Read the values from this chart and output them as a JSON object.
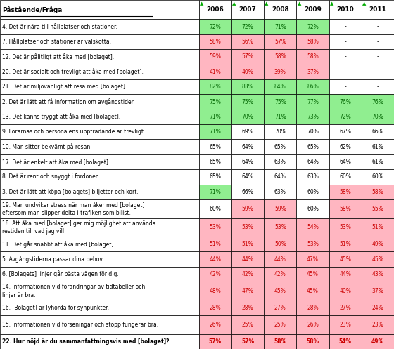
{
  "title": "Påstående/Fråga",
  "columns": [
    "2006",
    "2007",
    "2008",
    "2009",
    "2010",
    "2011"
  ],
  "rows": [
    {
      "label": "4. Det är nära till hållplatser och stationer.",
      "values": [
        "72%",
        "72%",
        "71%",
        "72%",
        "-",
        "-"
      ],
      "bg": [
        "green",
        "green",
        "green",
        "green",
        "none",
        "none"
      ],
      "bold": false,
      "two_lines": false
    },
    {
      "label": "7. Hållplatser och stationer är välskötta.",
      "values": [
        "58%",
        "56%",
        "57%",
        "58%",
        "-",
        "-"
      ],
      "bg": [
        "pink",
        "pink",
        "pink",
        "pink",
        "none",
        "none"
      ],
      "bold": false,
      "two_lines": false
    },
    {
      "label": "12. Det är pålitligt att åka med [bolaget].",
      "values": [
        "59%",
        "57%",
        "58%",
        "58%",
        "-",
        "-"
      ],
      "bg": [
        "pink",
        "pink",
        "pink",
        "pink",
        "none",
        "none"
      ],
      "bold": false,
      "two_lines": false
    },
    {
      "label": "20. Det är socialt och trevligt att åka med [bolaget].",
      "values": [
        "41%",
        "40%",
        "39%",
        "37%",
        "-",
        "-"
      ],
      "bg": [
        "pink",
        "pink",
        "pink",
        "pink",
        "none",
        "none"
      ],
      "bold": false,
      "two_lines": false
    },
    {
      "label": "21. Det är miljövänligt att resa med [bolaget].",
      "values": [
        "82%",
        "83%",
        "84%",
        "86%",
        "-",
        "-"
      ],
      "bg": [
        "green",
        "green",
        "green",
        "green",
        "none",
        "none"
      ],
      "bold": false,
      "two_lines": false
    },
    {
      "label": "2. Det är lätt att få information om avgångstider.",
      "values": [
        "75%",
        "75%",
        "75%",
        "77%",
        "76%",
        "76%"
      ],
      "bg": [
        "green",
        "green",
        "green",
        "green",
        "green",
        "green"
      ],
      "bold": false,
      "two_lines": false
    },
    {
      "label": "13. Det känns tryggt att åka med [bolaget].",
      "values": [
        "71%",
        "70%",
        "71%",
        "73%",
        "72%",
        "70%"
      ],
      "bg": [
        "green",
        "green",
        "green",
        "green",
        "green",
        "green"
      ],
      "bold": false,
      "two_lines": false
    },
    {
      "label": "9. Förarnas och personalens uppträdande är trevligt.",
      "values": [
        "71%",
        "69%",
        "70%",
        "70%",
        "67%",
        "66%"
      ],
      "bg": [
        "green",
        "none",
        "none",
        "none",
        "none",
        "none"
      ],
      "bold": false,
      "two_lines": false
    },
    {
      "label": "10. Man sitter bekvämt på resan.",
      "values": [
        "65%",
        "64%",
        "65%",
        "65%",
        "62%",
        "61%"
      ],
      "bg": [
        "none",
        "none",
        "none",
        "none",
        "none",
        "none"
      ],
      "bold": false,
      "two_lines": false
    },
    {
      "label": "17. Det är enkelt att åka med [bolaget].",
      "values": [
        "65%",
        "64%",
        "63%",
        "64%",
        "64%",
        "61%"
      ],
      "bg": [
        "none",
        "none",
        "none",
        "none",
        "none",
        "none"
      ],
      "bold": false,
      "two_lines": false
    },
    {
      "label": "8. Det är rent och snyggt i fordonen.",
      "values": [
        "65%",
        "64%",
        "64%",
        "63%",
        "60%",
        "60%"
      ],
      "bg": [
        "none",
        "none",
        "none",
        "none",
        "none",
        "none"
      ],
      "bold": false,
      "two_lines": false
    },
    {
      "label": "3. Det är lätt att köpa [bolagets] biljetter och kort.",
      "values": [
        "71%",
        "66%",
        "63%",
        "60%",
        "58%",
        "58%"
      ],
      "bg": [
        "green",
        "none",
        "none",
        "none",
        "pink",
        "pink"
      ],
      "bold": false,
      "two_lines": false
    },
    {
      "label": "19. Man undviker stress när man åker med [bolaget]\neftersom man slipper delta i trafiken som bilist.",
      "values": [
        "60%",
        "59%",
        "59%",
        "60%",
        "58%",
        "55%"
      ],
      "bg": [
        "none",
        "pink",
        "pink",
        "none",
        "pink",
        "pink"
      ],
      "bold": false,
      "two_lines": true
    },
    {
      "label": "18. Att åka med [bolaget] ger mig möjlighet att använda\nrestiden till vad jag vill.",
      "values": [
        "53%",
        "53%",
        "53%",
        "54%",
        "53%",
        "51%"
      ],
      "bg": [
        "pink",
        "pink",
        "pink",
        "pink",
        "pink",
        "pink"
      ],
      "bold": false,
      "two_lines": true
    },
    {
      "label": "11. Det går snabbt att åka med [bolaget].",
      "values": [
        "51%",
        "51%",
        "50%",
        "53%",
        "51%",
        "49%"
      ],
      "bg": [
        "pink",
        "pink",
        "pink",
        "pink",
        "pink",
        "pink"
      ],
      "bold": false,
      "two_lines": false
    },
    {
      "label": "5. Avgångstiderna passar dina behov.",
      "values": [
        "44%",
        "44%",
        "44%",
        "47%",
        "45%",
        "45%"
      ],
      "bg": [
        "pink",
        "pink",
        "pink",
        "pink",
        "pink",
        "pink"
      ],
      "bold": false,
      "two_lines": false
    },
    {
      "label": "6. [Bolagets] linjer går bästa vägen för dig.",
      "values": [
        "42%",
        "42%",
        "42%",
        "45%",
        "44%",
        "43%"
      ],
      "bg": [
        "pink",
        "pink",
        "pink",
        "pink",
        "pink",
        "pink"
      ],
      "bold": false,
      "two_lines": false
    },
    {
      "label": "14. Informationen vid förändringar av tidtabeller och\nlinjer är bra.",
      "values": [
        "48%",
        "47%",
        "45%",
        "45%",
        "40%",
        "37%"
      ],
      "bg": [
        "pink",
        "pink",
        "pink",
        "pink",
        "pink",
        "pink"
      ],
      "bold": false,
      "two_lines": true
    },
    {
      "label": "16. [Bolaget] är lyhörda för synpunkter.",
      "values": [
        "28%",
        "28%",
        "27%",
        "28%",
        "27%",
        "24%"
      ],
      "bg": [
        "pink",
        "pink",
        "pink",
        "pink",
        "pink",
        "pink"
      ],
      "bold": false,
      "two_lines": false
    },
    {
      "label": "15. Informationen vid förseningar och stopp fungerar bra.",
      "values": [
        "26%",
        "25%",
        "25%",
        "26%",
        "23%",
        "23%"
      ],
      "bg": [
        "pink",
        "pink",
        "pink",
        "pink",
        "pink",
        "pink"
      ],
      "bold": false,
      "two_lines": true
    },
    {
      "label": "22. Hur nöjd är du sammanfattningsvis med [bolaget]?",
      "values": [
        "57%",
        "57%",
        "58%",
        "58%",
        "54%",
        "49%"
      ],
      "bg": [
        "pink",
        "pink",
        "pink",
        "pink",
        "pink",
        "pink"
      ],
      "bold": true,
      "two_lines": false
    }
  ],
  "green_bg": "#90EE90",
  "pink_bg": "#FFB6C1",
  "white_bg": "#FFFFFF",
  "text_green": "#006400",
  "text_pink": "#CC0000",
  "text_black": "#000000",
  "border_color": "#000000",
  "green_marker": "#00AA00"
}
